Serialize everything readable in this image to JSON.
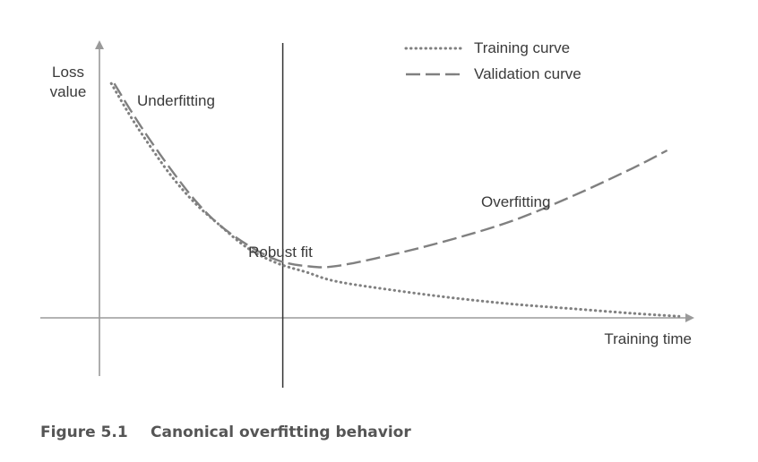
{
  "chart_data": {
    "type": "line",
    "axes": {
      "ylabel_line1": "Loss",
      "ylabel_line2": "value",
      "xlabel": "Training time",
      "ticks": "none",
      "grid": false
    },
    "legend": {
      "placement": "top-right",
      "entries": [
        {
          "label": "Training curve",
          "style": "dotted"
        },
        {
          "label": "Validation curve",
          "style": "dashed"
        }
      ]
    },
    "series": [
      {
        "name": "Training curve",
        "style": "dotted",
        "color": "#808080",
        "x": [
          0.2,
          0.5,
          0.8,
          1.2,
          1.6,
          2.0,
          2.5,
          3.0,
          3.5,
          4.0,
          5.0,
          6.0,
          7.0,
          8.0,
          9.0,
          9.8
        ],
        "y": [
          7.7,
          6.7,
          5.8,
          4.7,
          3.8,
          3.1,
          2.3,
          1.8,
          1.5,
          1.2,
          0.9,
          0.65,
          0.45,
          0.3,
          0.15,
          0.05
        ]
      },
      {
        "name": "Validation curve",
        "style": "dashed",
        "color": "#808080",
        "x": [
          0.25,
          0.5,
          0.8,
          1.2,
          1.6,
          2.0,
          2.5,
          3.0,
          3.5,
          4.0,
          5.0,
          6.0,
          7.0,
          8.0,
          9.0,
          9.6
        ],
        "y": [
          7.7,
          6.9,
          6.0,
          4.9,
          3.9,
          3.1,
          2.4,
          1.9,
          1.7,
          1.7,
          2.1,
          2.6,
          3.2,
          4.0,
          4.9,
          5.5
        ]
      }
    ],
    "annotations": [
      {
        "text": "Underfitting"
      },
      {
        "text": "Robust fit"
      },
      {
        "text": "Overfitting"
      }
    ],
    "divider_x": 3.1
  },
  "caption": {
    "number": "Figure 5.1",
    "text": "Canonical overfitting behavior"
  },
  "colors": {
    "axis": "#9a9a9a",
    "divider": "#333333",
    "curve": "#808080",
    "text": "#3a3a3a"
  }
}
